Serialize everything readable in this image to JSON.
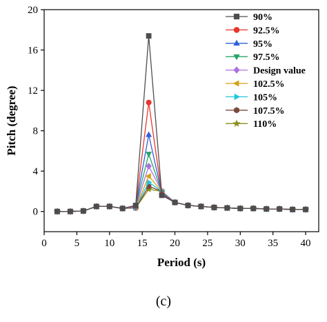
{
  "chart_data": {
    "type": "line",
    "xlabel": "Period (s)",
    "ylabel": "Pitch (degree)",
    "xlim": [
      0,
      42
    ],
    "ylim": [
      -2,
      20
    ],
    "x_ticks": [
      0,
      5,
      10,
      15,
      20,
      25,
      30,
      35,
      40
    ],
    "y_ticks": [
      0,
      4,
      8,
      12,
      16,
      20
    ],
    "grid": false,
    "legend_position": "top-right",
    "x": [
      2,
      4,
      6,
      8,
      10,
      12,
      14,
      16,
      18,
      20,
      22,
      24,
      26,
      28,
      30,
      32,
      34,
      36,
      38,
      40
    ],
    "series": [
      {
        "name": "90%",
        "color": "#4d4d4d",
        "marker": "square",
        "values": [
          0.0,
          0.0,
          0.05,
          0.5,
          0.5,
          0.3,
          0.6,
          17.4,
          1.6,
          0.9,
          0.6,
          0.5,
          0.4,
          0.35,
          0.3,
          0.3,
          0.25,
          0.25,
          0.2,
          0.2
        ]
      },
      {
        "name": "92.5%",
        "color": "#e8352e",
        "marker": "circle",
        "values": [
          0.0,
          0.0,
          0.05,
          0.5,
          0.5,
          0.3,
          0.55,
          10.8,
          1.7,
          0.9,
          0.6,
          0.5,
          0.4,
          0.35,
          0.3,
          0.3,
          0.25,
          0.25,
          0.2,
          0.2
        ]
      },
      {
        "name": "95%",
        "color": "#2f5fd8",
        "marker": "triangle-up",
        "values": [
          0.0,
          0.0,
          0.05,
          0.5,
          0.5,
          0.3,
          0.5,
          7.6,
          1.8,
          0.9,
          0.6,
          0.5,
          0.4,
          0.35,
          0.3,
          0.3,
          0.25,
          0.25,
          0.2,
          0.2
        ]
      },
      {
        "name": "97.5%",
        "color": "#28a36a",
        "marker": "triangle-down",
        "values": [
          0.0,
          0.0,
          0.05,
          0.5,
          0.5,
          0.3,
          0.5,
          5.7,
          1.9,
          0.9,
          0.6,
          0.5,
          0.4,
          0.35,
          0.3,
          0.3,
          0.25,
          0.25,
          0.2,
          0.2
        ]
      },
      {
        "name": "Design value",
        "color": "#b070e0",
        "marker": "diamond",
        "values": [
          0.0,
          0.0,
          0.05,
          0.5,
          0.5,
          0.3,
          0.45,
          4.5,
          2.0,
          0.9,
          0.6,
          0.5,
          0.4,
          0.35,
          0.3,
          0.3,
          0.25,
          0.25,
          0.2,
          0.2
        ]
      },
      {
        "name": "102.5%",
        "color": "#d4a017",
        "marker": "triangle-left",
        "values": [
          0.0,
          0.0,
          0.05,
          0.5,
          0.5,
          0.3,
          0.4,
          3.5,
          2.0,
          0.9,
          0.6,
          0.5,
          0.4,
          0.35,
          0.3,
          0.3,
          0.25,
          0.25,
          0.2,
          0.2
        ]
      },
      {
        "name": "105%",
        "color": "#22c6dc",
        "marker": "triangle-right",
        "values": [
          0.0,
          0.0,
          0.05,
          0.5,
          0.5,
          0.3,
          0.4,
          2.9,
          2.0,
          0.9,
          0.6,
          0.5,
          0.4,
          0.35,
          0.3,
          0.3,
          0.25,
          0.25,
          0.2,
          0.2
        ]
      },
      {
        "name": "107.5%",
        "color": "#7a4a3a",
        "marker": "hexagon",
        "values": [
          0.0,
          0.0,
          0.05,
          0.5,
          0.5,
          0.3,
          0.35,
          2.5,
          2.0,
          0.9,
          0.6,
          0.5,
          0.4,
          0.35,
          0.3,
          0.3,
          0.25,
          0.25,
          0.2,
          0.2
        ]
      },
      {
        "name": "110%",
        "color": "#8c8c1a",
        "marker": "star",
        "values": [
          0.0,
          0.0,
          0.05,
          0.5,
          0.5,
          0.3,
          0.35,
          2.2,
          2.0,
          0.9,
          0.6,
          0.5,
          0.4,
          0.35,
          0.3,
          0.3,
          0.25,
          0.25,
          0.2,
          0.2
        ]
      }
    ]
  },
  "caption": "(c)"
}
